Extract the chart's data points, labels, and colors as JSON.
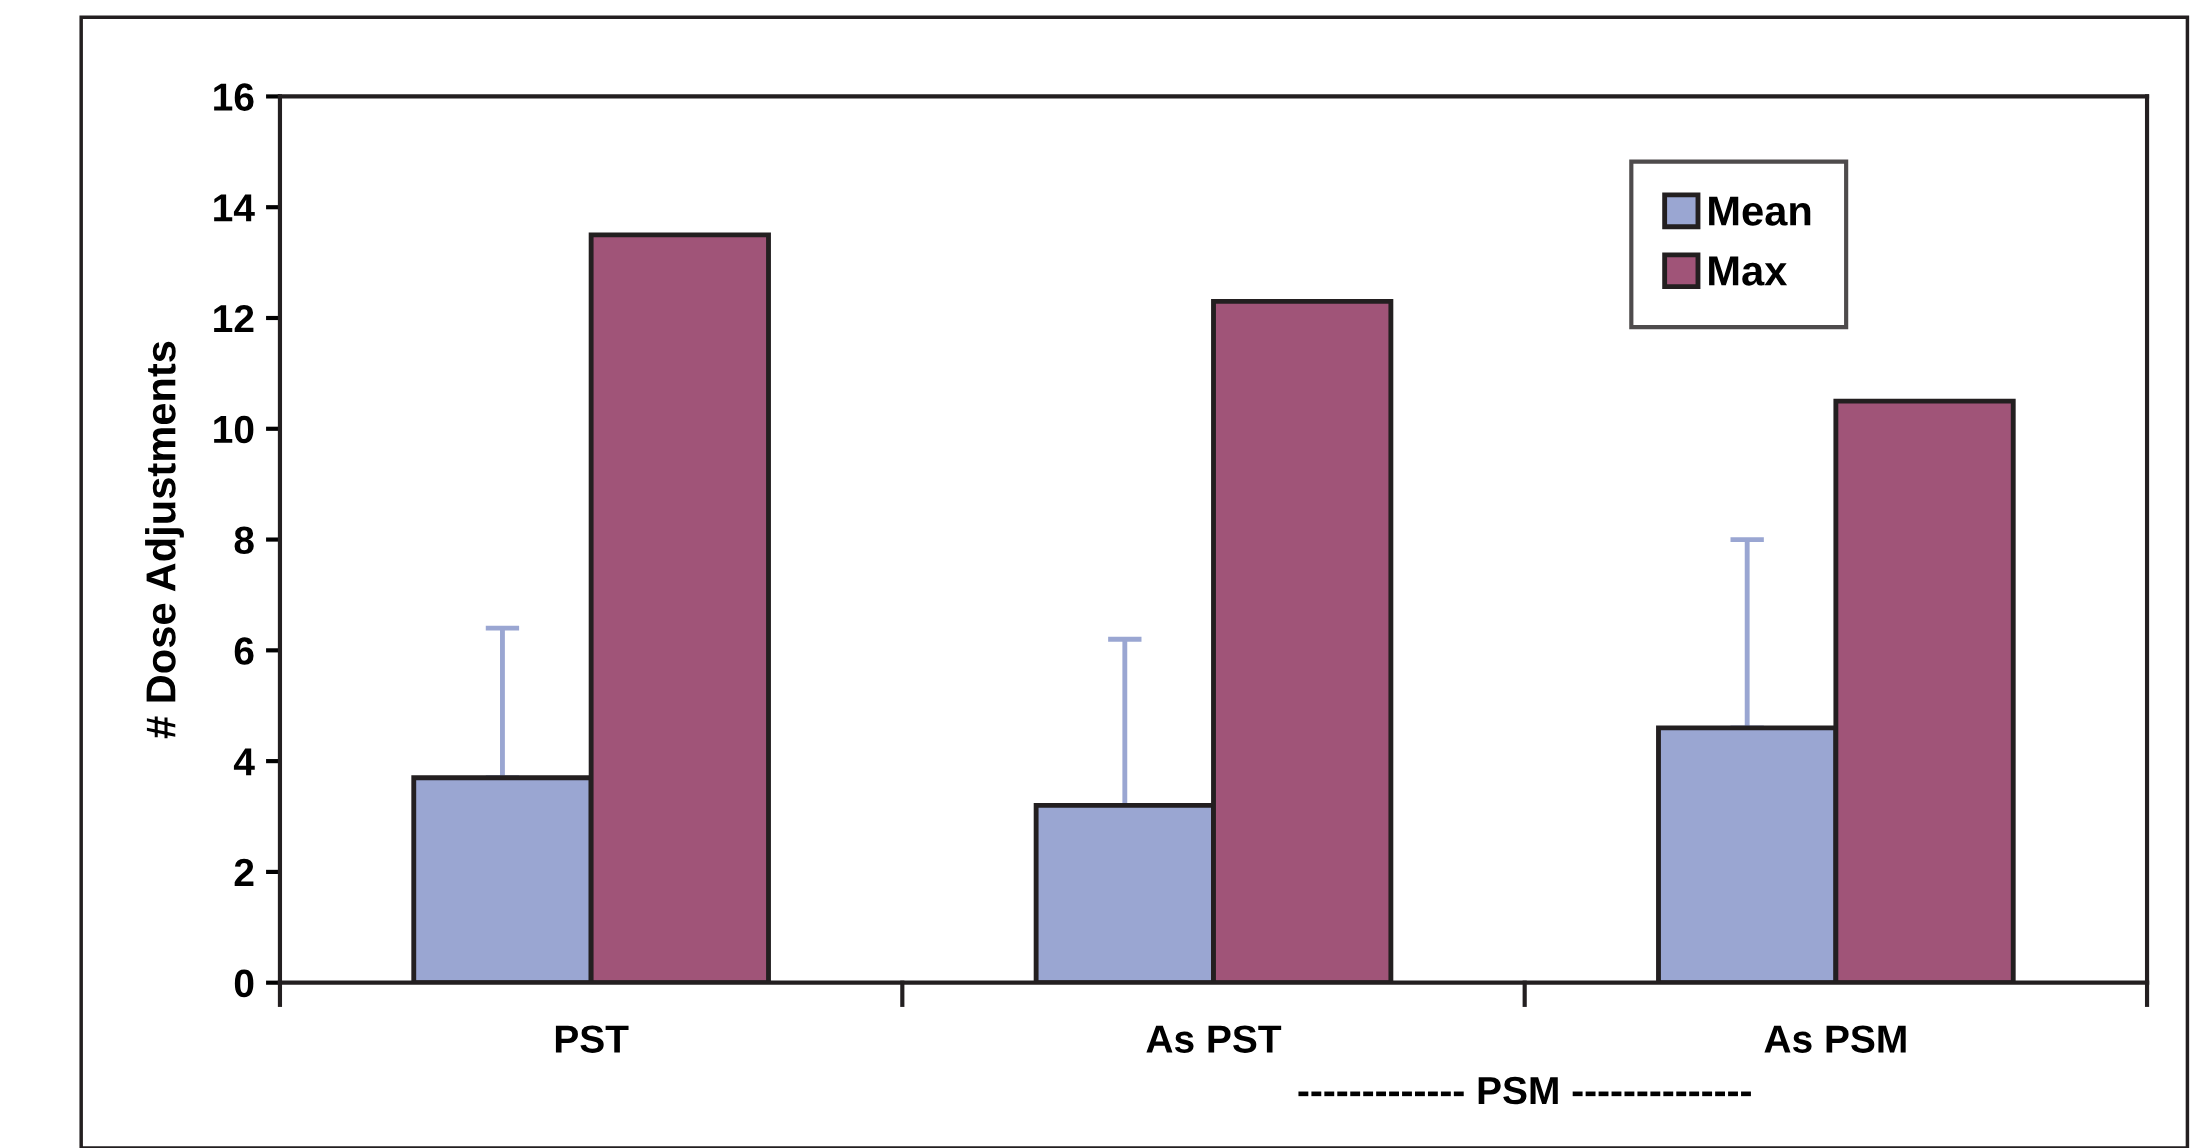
{
  "chart_data": {
    "type": "bar",
    "ylabel": "# Dose Adjustments",
    "categories": [
      "PST",
      "As PST",
      "As PSM"
    ],
    "series": [
      {
        "name": "Mean",
        "color": "#9aa6d2",
        "values": [
          3.7,
          3.2,
          4.6
        ],
        "errors": [
          [
            3.7,
            6.4
          ],
          [
            3.2,
            6.2
          ],
          [
            4.6,
            8.0
          ]
        ]
      },
      {
        "name": "Max",
        "color": "#a05478",
        "values": [
          13.5,
          12.3,
          10.5
        ]
      }
    ],
    "ylim": [
      0,
      16
    ],
    "yticks": [
      0,
      2,
      4,
      6,
      8,
      10,
      12,
      14,
      16
    ],
    "annotations": [
      "------------- PSM --------------"
    ],
    "grid": false,
    "legend": "top right"
  }
}
